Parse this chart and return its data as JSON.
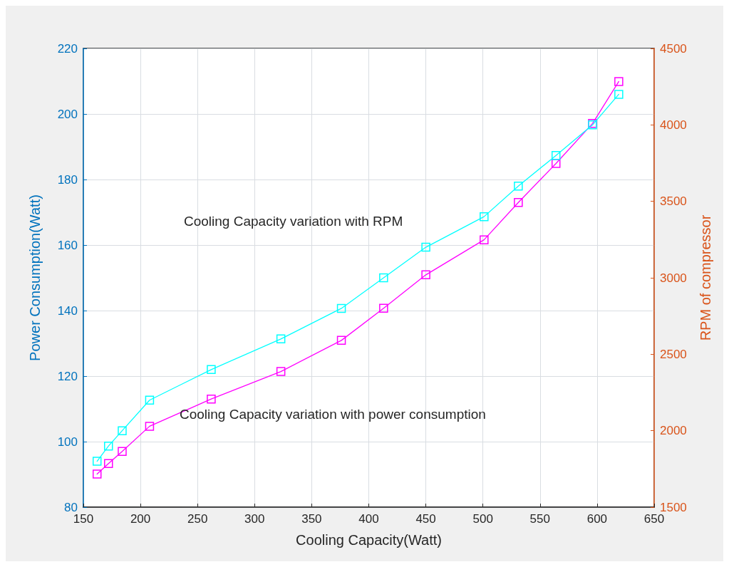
{
  "chart_data": {
    "type": "line",
    "xlabel": "Cooling Capacity(Watt)",
    "ylabel": "Power Consumption(Watt)",
    "y2label": "RPM of compressor",
    "x": [
      162,
      172,
      184,
      208,
      262,
      323,
      376,
      413,
      450,
      501,
      531,
      564,
      596,
      619
    ],
    "series": [
      {
        "color": "#ff00ff",
        "values": [
          90.1,
          93.3,
          97.0,
          104.7,
          113.0,
          121.4,
          130.9,
          140.7,
          150.9,
          161.6,
          173.0,
          184.9,
          197.1,
          209.9
        ]
      },
      {
        "color": "#00ffff",
        "axis": "y2",
        "values": [
          1800,
          1900,
          2000,
          2200,
          2400,
          2600,
          2800,
          3000,
          3200,
          3400,
          3600,
          3800,
          4000,
          4200
        ]
      }
    ],
    "xlim": [
      150,
      650
    ],
    "xticks": [
      150,
      200,
      250,
      300,
      350,
      400,
      450,
      500,
      550,
      600,
      650
    ],
    "ylim": [
      80,
      220
    ],
    "yticks": [
      80,
      100,
      120,
      140,
      160,
      180,
      200,
      220
    ],
    "y2lim": [
      1500,
      4500
    ],
    "y2ticks": [
      1500,
      2000,
      2500,
      3000,
      3500,
      4000,
      4500
    ],
    "annotations": [
      "Cooling Capacity variation with RPM",
      "Cooling Capacity variation with power consumption"
    ],
    "grid": true,
    "marker": "square",
    "line_style": "solid"
  }
}
